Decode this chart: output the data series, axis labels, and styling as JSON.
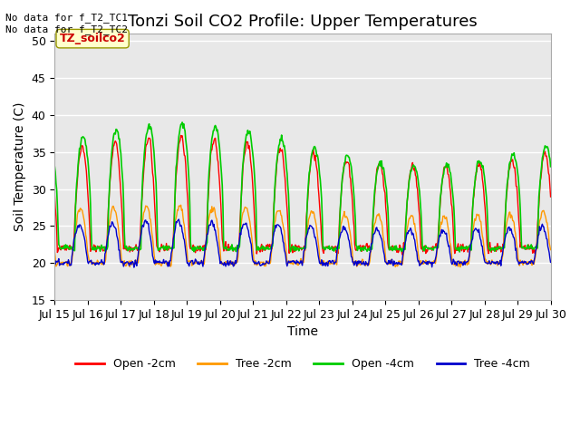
{
  "title": "Tonzi Soil CO2 Profile: Upper Temperatures",
  "xlabel": "Time",
  "ylabel": "Soil Temperature (C)",
  "ylim": [
    15,
    51
  ],
  "yticks": [
    15,
    20,
    25,
    30,
    35,
    40,
    45,
    50
  ],
  "annotation_top_left": "No data for f_T2_TC1\nNo data for f_T2_TC2",
  "annotation_box": "TZ_soilco2",
  "legend_labels": [
    "Open -2cm",
    "Tree -2cm",
    "Open -4cm",
    "Tree -4cm"
  ],
  "legend_colors": [
    "#ff0000",
    "#ff9900",
    "#00cc00",
    "#0000cc"
  ],
  "line_colors": [
    "#ff0000",
    "#ff9900",
    "#00cc00",
    "#0000cc"
  ],
  "bg_color": "#ffffff",
  "plot_bg_color": "#e8e8e8",
  "grid_color": "#ffffff",
  "n_days": 15,
  "points_per_day": 48,
  "open_2cm_base": 22,
  "open_2cm_amp": 13,
  "tree_2cm_base": 20,
  "tree_2cm_amp": 7,
  "open_4cm_base": 22,
  "open_4cm_amp": 14,
  "tree_4cm_base": 20,
  "tree_4cm_amp": 5,
  "x_tick_labels": [
    "Jul 15",
    "Jul 16",
    "Jul 17",
    "Jul 18",
    "Jul 19",
    "Jul 20",
    "Jul 21",
    "Jul 22",
    "Jul 23",
    "Jul 24",
    "Jul 25",
    "Jul 26",
    "Jul 27",
    "Jul 28",
    "Jul 29",
    "Jul 30"
  ],
  "title_fontsize": 13,
  "axis_label_fontsize": 10,
  "tick_fontsize": 9,
  "legend_fontsize": 9
}
